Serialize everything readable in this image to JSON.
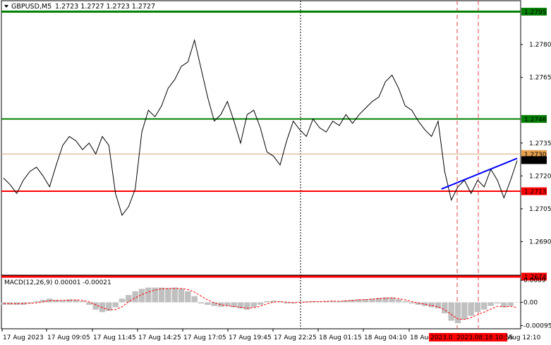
{
  "header": {
    "symbol": "GBPUSD,M5",
    "ohlc": "1.2723 1.2727 1.2723 1.2727"
  },
  "macd": {
    "label": "MACD(12,26,9) 0.00001 -0.00021"
  },
  "colors": {
    "price": "#000000",
    "green_level": "#008000",
    "red_level": "#ff0000",
    "orange_level": "#d2a679",
    "trend": "#0000ff",
    "macd_hist": "#c0c0c0",
    "macd_signal": "#ff0000",
    "vline_red": "#e04040"
  },
  "chart_data": [
    {
      "type": "line",
      "title": "GBPUSD,M5",
      "ylim": [
        1.2675,
        1.28
      ],
      "price_axis_ticks": [
        "1.2780",
        "1.2765",
        "1.2735",
        "1.2720",
        "1.2705",
        "1.2690"
      ],
      "time_axis_labels": [
        "17 Aug 2023",
        "17 Aug 09:05",
        "17 Aug 11:45",
        "17 Aug 14:25",
        "17 Aug 17:05",
        "17 Aug 19:45",
        "17 Aug 22:25",
        "18 Aug 01:15",
        "18 Aug 04:10",
        "18 Aug"
      ],
      "highlighted_time": "2023.0",
      "highlighted_time_2": "2023.08.18 10:55",
      "time_axis_tail": "Aug 12:10",
      "levels": [
        {
          "value": 1.2795,
          "label": "1.2795",
          "color": "#008000"
        },
        {
          "value": 1.2746,
          "label": "1.2746",
          "color": "#008000"
        },
        {
          "value": 1.273,
          "label": "1.2730",
          "color": "#d2a679"
        },
        {
          "value": 1.2713,
          "label": "1.2713",
          "color": "#ff0000"
        },
        {
          "value": 1.2674,
          "label": "1.2674",
          "color": "#ff0000"
        }
      ],
      "current_price": {
        "value": 1.2727,
        "label": "1.2727"
      },
      "series": [
        {
          "values": [
            1.2719,
            1.2716,
            1.2712,
            1.2718,
            1.2722,
            1.2724,
            1.272,
            1.2715,
            1.2725,
            1.2734,
            1.2738,
            1.2736,
            1.2732,
            1.2735,
            1.273,
            1.2738,
            1.2734,
            1.2712,
            1.2702,
            1.2706,
            1.2714,
            1.274,
            1.275,
            1.2747,
            1.2752,
            1.276,
            1.2764,
            1.277,
            1.2772,
            1.2782,
            1.2769,
            1.2756,
            1.2745,
            1.2748,
            1.2754,
            1.2745,
            1.2735,
            1.2748,
            1.275,
            1.2742,
            1.2731,
            1.2729,
            1.2725,
            1.2736,
            1.2745,
            1.2741,
            1.2738,
            1.2746,
            1.2742,
            1.274,
            1.2745,
            1.2743,
            1.2748,
            1.2744,
            1.2748,
            1.2751,
            1.2754,
            1.2756,
            1.2763,
            1.2766,
            1.276,
            1.2752,
            1.275,
            1.2745,
            1.2741,
            1.2738,
            1.2745,
            1.2722,
            1.2709,
            1.2715,
            1.2718,
            1.2712,
            1.2718,
            1.2715,
            1.2723,
            1.2718,
            1.271,
            1.2718,
            1.2727
          ]
        }
      ],
      "trendline": {
        "from": [
          66.5,
          1.2714
        ],
        "to": [
          78,
          1.2728
        ]
      }
    },
    {
      "type": "bar",
      "title": "MACD(12,26,9) 0.00001 -0.00021",
      "ylim": [
        -0.00105,
        0.00105
      ],
      "ticks": [
        "0.0009",
        "0.00",
        "-0.00095"
      ],
      "series": [
        {
          "name": "histogram",
          "values": [
            -0.0001,
            -0.0001,
            -0.0001,
            -0.0001,
            -5e-05,
            5e-05,
            0.0001,
            0.00015,
            0.0001,
            8e-05,
            0.00012,
            0.0001,
            5e-05,
            -0.0001,
            -0.0003,
            -0.0004,
            -0.00035,
            -0.0002,
            0.00015,
            0.0003,
            0.00045,
            0.00055,
            0.0006,
            0.0006,
            0.0006,
            0.00058,
            0.0006,
            0.00055,
            0.00045,
            0.00025,
            -5e-05,
            -0.0001,
            -0.00015,
            -0.00018,
            -0.00015,
            -0.0002,
            -0.00025,
            -0.0003,
            -0.0002,
            -0.0001,
            5e-05,
            7e-05,
            5e-05,
            -5e-05,
            -5e-05,
            2e-05,
            4e-05,
            5e-05,
            3e-05,
            5e-05,
            6e-05,
            4e-05,
            8e-05,
            0.0001,
            0.00012,
            0.00013,
            0.00015,
            0.00018,
            0.0002,
            0.0002,
            0.00012,
            5e-05,
            -5e-05,
            -0.0001,
            -0.00015,
            -0.0002,
            -0.00025,
            -0.00045,
            -0.00075,
            -0.00085,
            -0.0007,
            -0.00055,
            -0.0004,
            -0.0003,
            -0.00015,
            -5e-05,
            -0.0002,
            -0.00015,
            1e-05
          ]
        },
        {
          "name": "signal",
          "values": [
            -5e-05,
            -5e-05,
            -6e-05,
            -5e-05,
            -4e-05,
            -2e-05,
            2e-05,
            6e-05,
            8e-05,
            8e-05,
            9e-05,
            0.0001,
            8e-05,
            2e-05,
            -0.0001,
            -0.00022,
            -0.0003,
            -0.0003,
            -0.00018,
            2e-05,
            0.00018,
            0.00032,
            0.00042,
            0.0005,
            0.00055,
            0.00056,
            0.00057,
            0.00056,
            0.00052,
            0.00042,
            0.00025,
            0.0001,
            -2e-05,
            -0.0001,
            -0.00014,
            -0.00017,
            -0.0002,
            -0.00024,
            -0.00022,
            -0.00016,
            -6e-05,
            1e-05,
            3e-05,
            1e-05,
            -1e-05,
            0,
            1e-05,
            3e-05,
            3e-05,
            4e-05,
            5e-05,
            4e-05,
            6e-05,
            8e-05,
            0.0001,
            0.00011,
            0.00013,
            0.00015,
            0.00017,
            0.00018,
            0.00015,
            0.0001,
            3e-05,
            -3e-05,
            -8e-05,
            -0.00013,
            -0.00018,
            -0.0003,
            -0.0005,
            -0.00068,
            -0.0007,
            -0.00062,
            -0.0005,
            -0.0004,
            -0.00028,
            -0.00016,
            -0.00018,
            -0.00017,
            -0.00021
          ]
        }
      ]
    }
  ]
}
